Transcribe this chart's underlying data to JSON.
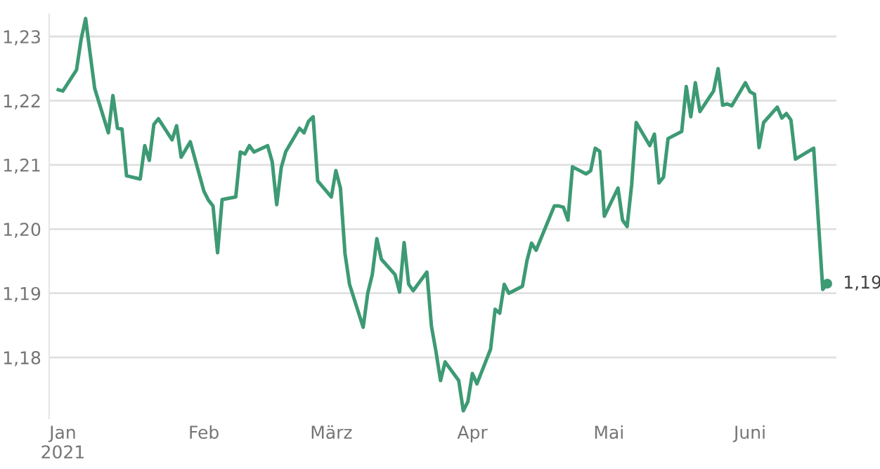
{
  "chart_data": {
    "type": "line",
    "color": "#3d9a74",
    "grid": "y",
    "marker": "none",
    "line_style": "solid",
    "x": [
      "2020-12-31",
      "2021-01-01",
      "2021-01-04",
      "2021-01-05",
      "2021-01-06",
      "2021-01-07",
      "2021-01-08",
      "2021-01-11",
      "2021-01-12",
      "2021-01-13",
      "2021-01-14",
      "2021-01-15",
      "2021-01-18",
      "2021-01-19",
      "2021-01-20",
      "2021-01-21",
      "2021-01-22",
      "2021-01-25",
      "2021-01-26",
      "2021-01-27",
      "2021-01-29",
      "2021-02-01",
      "2021-02-02",
      "2021-02-03",
      "2021-02-04",
      "2021-02-05",
      "2021-02-08",
      "2021-02-09",
      "2021-02-10",
      "2021-02-11",
      "2021-02-12",
      "2021-02-15",
      "2021-02-16",
      "2021-02-17",
      "2021-02-18",
      "2021-02-19",
      "2021-02-22",
      "2021-02-23",
      "2021-02-24",
      "2021-02-25",
      "2021-02-26",
      "2021-03-01",
      "2021-03-02",
      "2021-03-03",
      "2021-03-04",
      "2021-03-05",
      "2021-03-08",
      "2021-03-09",
      "2021-03-10",
      "2021-03-11",
      "2021-03-12",
      "2021-03-15",
      "2021-03-16",
      "2021-03-17",
      "2021-03-18",
      "2021-03-19",
      "2021-03-22",
      "2021-03-23",
      "2021-03-24",
      "2021-03-25",
      "2021-03-26",
      "2021-03-29",
      "2021-03-30",
      "2021-03-31",
      "2021-04-01",
      "2021-04-02",
      "2021-04-05",
      "2021-04-06",
      "2021-04-07",
      "2021-04-08",
      "2021-04-09",
      "2021-04-12",
      "2021-04-13",
      "2021-04-14",
      "2021-04-15",
      "2021-04-19",
      "2021-04-20",
      "2021-04-21",
      "2021-04-22",
      "2021-04-23",
      "2021-04-26",
      "2021-04-27",
      "2021-04-28",
      "2021-04-29",
      "2021-04-30",
      "2021-05-03",
      "2021-05-04",
      "2021-05-05",
      "2021-05-06",
      "2021-05-07",
      "2021-05-10",
      "2021-05-11",
      "2021-05-12",
      "2021-05-13",
      "2021-05-14",
      "2021-05-17",
      "2021-05-18",
      "2021-05-19",
      "2021-05-20",
      "2021-05-21",
      "2021-05-24",
      "2021-05-25",
      "2021-05-26",
      "2021-05-27",
      "2021-05-28",
      "2021-05-31",
      "2021-06-01",
      "2021-06-02",
      "2021-06-03",
      "2021-06-04",
      "2021-06-07",
      "2021-06-08",
      "2021-06-09",
      "2021-06-10",
      "2021-06-11",
      "2021-06-15",
      "2021-06-17",
      "2021-06-18"
    ],
    "values": [
      1.2217,
      1.2215,
      1.2248,
      1.2295,
      1.2328,
      1.2273,
      1.2219,
      1.215,
      1.2208,
      1.2157,
      1.2156,
      1.2083,
      1.2078,
      1.213,
      1.2107,
      1.2163,
      1.2172,
      1.2139,
      1.2161,
      1.2112,
      1.2136,
      1.2059,
      1.2045,
      1.2036,
      1.1963,
      1.2046,
      1.205,
      1.212,
      1.2117,
      1.213,
      1.212,
      1.213,
      1.2105,
      1.2038,
      1.2096,
      1.2121,
      1.2157,
      1.215,
      1.2168,
      1.2175,
      1.2075,
      1.205,
      1.2091,
      1.2064,
      1.1962,
      1.1914,
      1.1847,
      1.19,
      1.1929,
      1.1985,
      1.1953,
      1.1929,
      1.1902,
      1.1979,
      1.1914,
      1.1904,
      1.1933,
      1.1849,
      1.1809,
      1.1764,
      1.1793,
      1.1764,
      1.1717,
      1.1731,
      1.1775,
      1.1759,
      1.1813,
      1.1875,
      1.1869,
      1.1914,
      1.19,
      1.1911,
      1.1951,
      1.1978,
      1.1967,
      1.2036,
      1.2036,
      1.2034,
      1.2014,
      1.2097,
      1.2086,
      1.2091,
      1.2126,
      1.2121,
      1.202,
      1.2064,
      1.2014,
      1.2004,
      1.2069,
      1.2166,
      1.213,
      1.2148,
      1.2072,
      1.2081,
      1.2141,
      1.2152,
      1.2222,
      1.2175,
      1.2228,
      1.2183,
      1.2215,
      1.225,
      1.2193,
      1.2195,
      1.2192,
      1.2228,
      1.2214,
      1.221,
      1.2127,
      1.2166,
      1.219,
      1.2173,
      1.218,
      1.217,
      1.2109,
      1.2126,
      1.1906,
      1.1915
    ],
    "xlim": [
      "2020-12-29",
      "2021-06-20"
    ],
    "xticks": [
      {
        "value": "2021-01-01",
        "label": "Jan\n2021"
      },
      {
        "value": "2021-02-01",
        "label": "Feb"
      },
      {
        "value": "2021-03-01",
        "label": "März"
      },
      {
        "value": "2021-04-01",
        "label": "Apr"
      },
      {
        "value": "2021-05-01",
        "label": "Mai"
      },
      {
        "value": "2021-06-01",
        "label": "Juni"
      }
    ],
    "ylim": [
      1.1705,
      1.2335
    ],
    "yticks": [
      {
        "value": 1.18,
        "label": "1,18"
      },
      {
        "value": 1.19,
        "label": "1,19"
      },
      {
        "value": 1.2,
        "label": "1,20"
      },
      {
        "value": 1.21,
        "label": "1,21"
      },
      {
        "value": 1.22,
        "label": "1,22"
      },
      {
        "value": 1.23,
        "label": "1,23"
      }
    ],
    "annotations": [
      {
        "text": "1,19",
        "x": "2021-06-18",
        "y": 1.1915
      }
    ]
  }
}
